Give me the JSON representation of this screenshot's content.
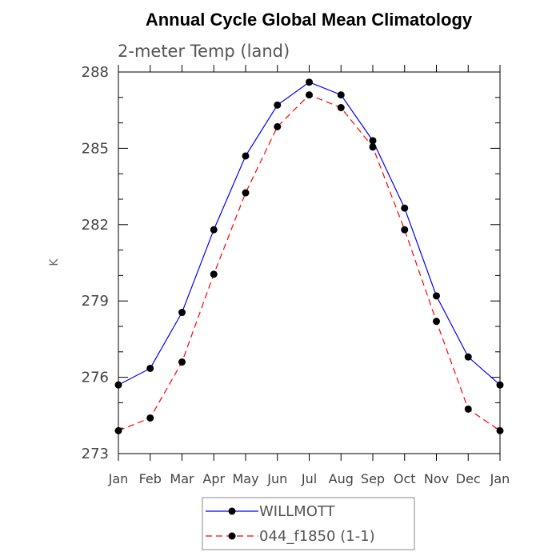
{
  "chart_data": {
    "type": "line",
    "title": "Annual Cycle Global Mean Climatology",
    "subtitle": "2-meter Temp (land)",
    "xlabel": "",
    "ylabel": "K",
    "ylim": [
      273,
      288
    ],
    "yticks": [
      273,
      276,
      279,
      282,
      285,
      288
    ],
    "categories": [
      "Jan",
      "Feb",
      "Mar",
      "Apr",
      "May",
      "Jun",
      "Jul",
      "Aug",
      "Sep",
      "Oct",
      "Nov",
      "Dec",
      "Jan"
    ],
    "series": [
      {
        "name": "WILLMOTT",
        "color": "#0000ff",
        "style": "solid",
        "values": [
          275.7,
          276.35,
          278.55,
          281.8,
          284.7,
          286.7,
          287.6,
          287.1,
          285.3,
          282.65,
          279.2,
          276.8,
          275.7
        ]
      },
      {
        "name": "044_f1850 (1-1)",
        "color": "#ff0000",
        "style": "dashed",
        "values": [
          273.9,
          274.4,
          276.6,
          280.05,
          283.25,
          285.85,
          287.1,
          286.6,
          285.05,
          281.8,
          278.2,
          274.75,
          273.9
        ]
      }
    ],
    "grid": false,
    "legend_position": "bottom"
  }
}
